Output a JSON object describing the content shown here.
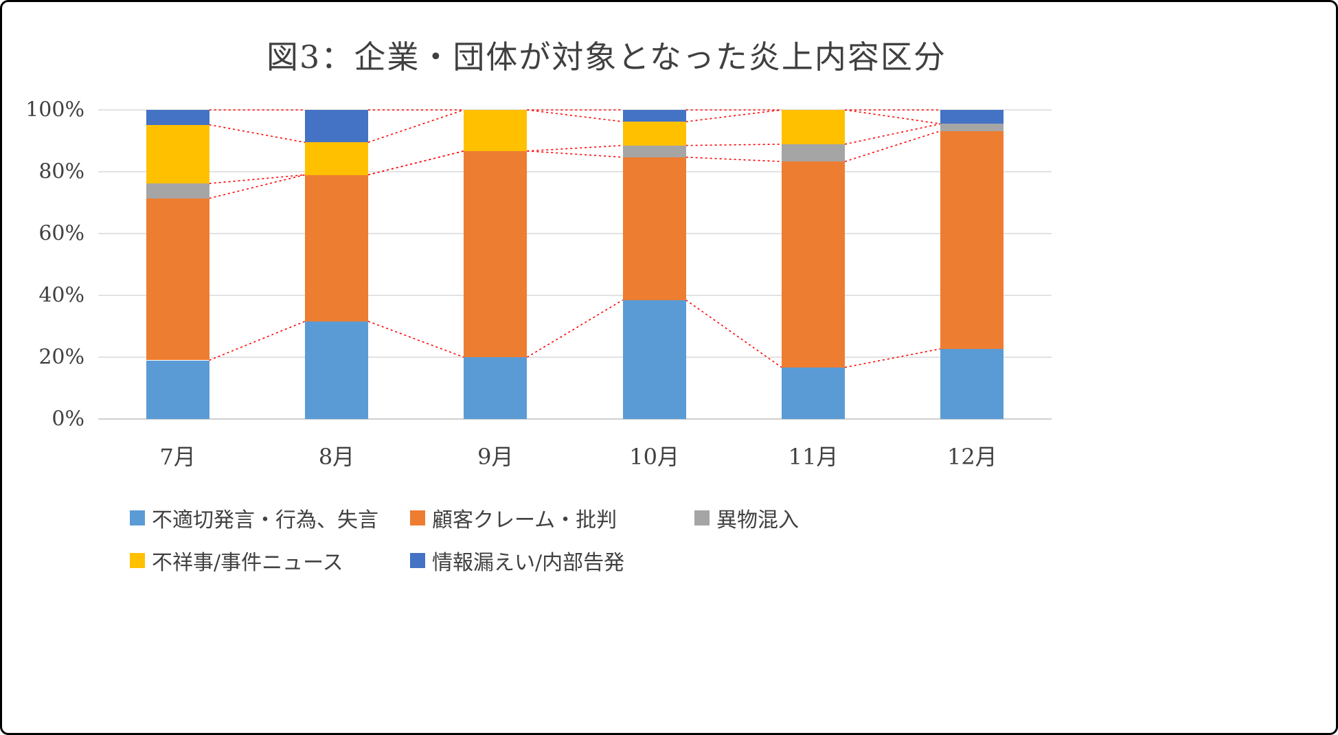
{
  "chart_data": {
    "type": "bar",
    "stacked": true,
    "percent": true,
    "title": "図3：企業・団体が対象となった炎上内容区分",
    "categories": [
      "7月",
      "8月",
      "9月",
      "10月",
      "11月",
      "12月"
    ],
    "series": [
      {
        "name": "不適切発言・行為、失言",
        "color": "#5B9BD5",
        "values": [
          19.0,
          31.6,
          20.0,
          38.5,
          16.7,
          22.7
        ]
      },
      {
        "name": "顧客クレーム・批判",
        "color": "#ED7D31",
        "values": [
          52.4,
          47.4,
          66.7,
          46.2,
          66.6,
          70.5
        ]
      },
      {
        "name": "異物混入",
        "color": "#A5A5A5",
        "values": [
          4.8,
          0,
          0,
          3.8,
          5.6,
          2.3
        ]
      },
      {
        "name": "不祥事/事件ニュース",
        "color": "#FFC000",
        "values": [
          19.0,
          10.5,
          13.3,
          7.7,
          11.1,
          0
        ]
      },
      {
        "name": "情報漏えい/内部告発",
        "color": "#4472C4",
        "values": [
          4.8,
          10.5,
          0,
          3.8,
          0,
          4.5
        ]
      }
    ],
    "yticks": [
      {
        "label": "0%",
        "value": 0
      },
      {
        "label": "20%",
        "value": 20
      },
      {
        "label": "40%",
        "value": 40
      },
      {
        "label": "60%",
        "value": 60
      },
      {
        "label": "80%",
        "value": 80
      },
      {
        "label": "100%",
        "value": 100
      }
    ],
    "ylim": [
      0,
      100
    ],
    "grid": true,
    "gridline_color": "#D9D9D9",
    "axis_line_color": "#BFBFBF",
    "series_lines_color": "#FF0000",
    "legend_position": "bottom"
  }
}
